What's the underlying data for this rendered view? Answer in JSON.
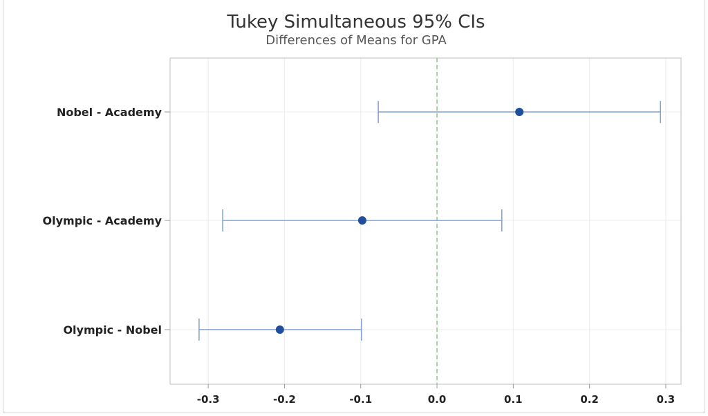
{
  "chart_data": {
    "type": "interval",
    "title": "Tukey Simultaneous 95% CIs",
    "subtitle": "Differences of Means for GPA",
    "xlabel": "",
    "ylabel": "",
    "xlim": [
      -0.35,
      0.32
    ],
    "x_ticks": [
      "-0.3",
      "-0.2",
      "-0.1",
      "0.0",
      "0.1",
      "0.2",
      "0.3"
    ],
    "x_tick_values": [
      -0.3,
      -0.2,
      -0.1,
      0.0,
      0.1,
      0.2,
      0.3
    ],
    "reference_line": 0,
    "grid": true,
    "comparisons": [
      {
        "label": "Nobel - Academy",
        "lower": -0.077,
        "estimate": 0.108,
        "upper": 0.293
      },
      {
        "label": "Olympic - Academy",
        "lower": -0.281,
        "estimate": -0.098,
        "upper": 0.085
      },
      {
        "label": "Olympic - Nobel",
        "lower": -0.312,
        "estimate": -0.206,
        "upper": -0.099
      }
    ],
    "colors": {
      "point": "#1f4e9c",
      "interval": "#7f9fcf",
      "reference": "#8ec48a",
      "grid": "#ececec",
      "axis": "#bdbdbd"
    }
  }
}
